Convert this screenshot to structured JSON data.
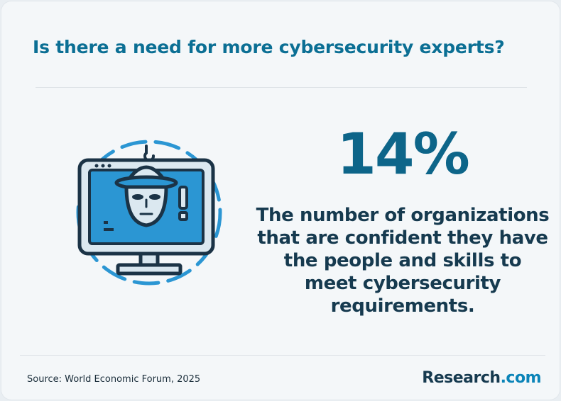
{
  "header": {
    "title": "Is there a need for more cybersecurity experts?"
  },
  "stat": {
    "value": "14%",
    "description": "The number of organizations that are confident they have the people and skills to meet cybersecurity requirements."
  },
  "illustration": {
    "icon": "hacker-monitor-icon",
    "accent_color": "#2b96d3"
  },
  "footer": {
    "source": "Source: World Economic Forum, 2025",
    "brand_name": "Research",
    "brand_suffix": ".com"
  },
  "colors": {
    "title": "#0b6f94",
    "stat": "#0d6589",
    "text": "#163a4f",
    "background": "#f4f7f9"
  }
}
